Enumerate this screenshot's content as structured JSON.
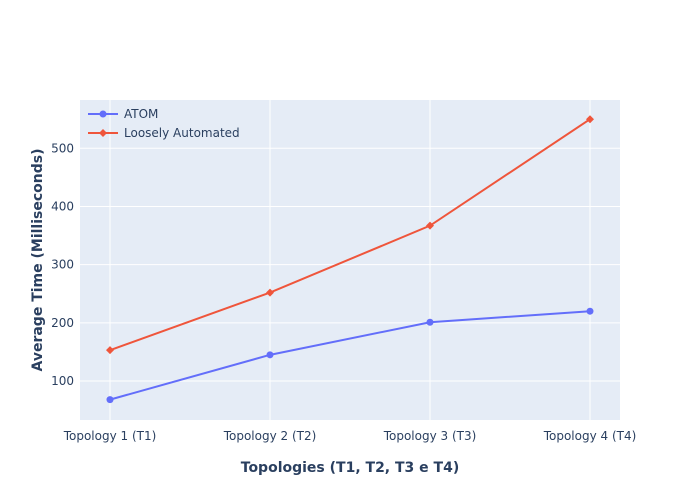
{
  "chart_data": {
    "type": "line",
    "title": "",
    "xlabel": "Topologies (T1, T2, T3 e T4)",
    "ylabel": "Average Time (Milliseconds)",
    "categories": [
      "Topology 1 (T1)",
      "Topology 2 (T2)",
      "Topology 3 (T3)",
      "Topology 4 (T4)"
    ],
    "ylim": [
      33,
      583
    ],
    "yticks": [
      100,
      200,
      300,
      400,
      500
    ],
    "grid": true,
    "legend_position": "top-left",
    "series": [
      {
        "name": "ATOM",
        "values": [
          68,
          145,
          201,
          220
        ],
        "color": "#636efa",
        "marker": "circle"
      },
      {
        "name": "Loosely Automated",
        "values": [
          153,
          252,
          367,
          550
        ],
        "color": "#ef553b",
        "marker": "diamond"
      }
    ],
    "plot_background": "#e5ecf6"
  }
}
